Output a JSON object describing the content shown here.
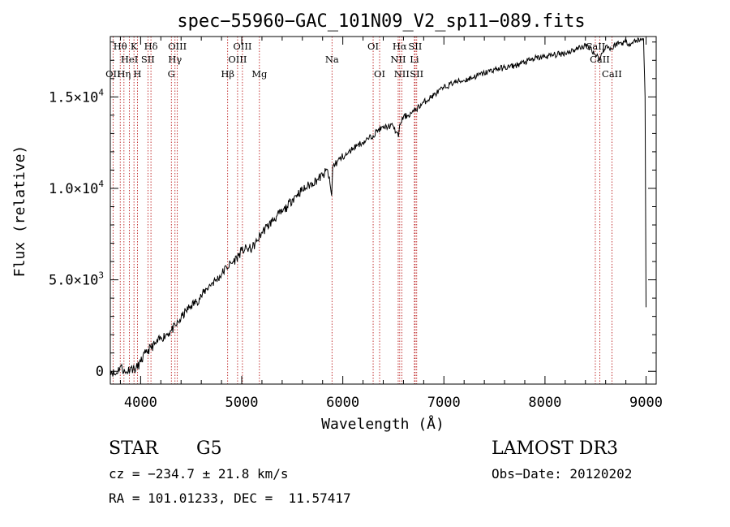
{
  "chart_data": {
    "type": "line",
    "title": "spec−55960−GAC_101N09_V2_sp11−089.fits",
    "xlabel": "Wavelength (Å)",
    "ylabel": "Flux (relative)",
    "xlim": [
      3700,
      9100
    ],
    "ylim": [
      -700,
      18300
    ],
    "x_ticks": [
      {
        "value": 4000,
        "label": "4000"
      },
      {
        "value": 5000,
        "label": "5000"
      },
      {
        "value": 6000,
        "label": "6000"
      },
      {
        "value": 7000,
        "label": "7000"
      },
      {
        "value": 8000,
        "label": "8000"
      },
      {
        "value": 9000,
        "label": "9000"
      }
    ],
    "y_ticks": [
      {
        "value": 0,
        "base": "0",
        "exp": ""
      },
      {
        "value": 5000,
        "base": "5.0×10",
        "exp": "3"
      },
      {
        "value": 10000,
        "base": "1.0×10",
        "exp": "4"
      },
      {
        "value": 15000,
        "base": "1.5×10",
        "exp": "4"
      }
    ],
    "series": [
      {
        "name": "spectrum",
        "x": [
          3700,
          3750,
          3800,
          3850,
          3900,
          3950,
          4000,
          4050,
          4100,
          4150,
          4200,
          4250,
          4300,
          4350,
          4400,
          4450,
          4500,
          4550,
          4600,
          4650,
          4700,
          4750,
          4800,
          4850,
          4900,
          4950,
          5000,
          5050,
          5100,
          5150,
          5200,
          5250,
          5300,
          5350,
          5400,
          5450,
          5500,
          5550,
          5600,
          5650,
          5700,
          5750,
          5800,
          5850,
          5890,
          5900,
          5950,
          6000,
          6050,
          6100,
          6150,
          6200,
          6250,
          6300,
          6350,
          6400,
          6450,
          6500,
          6550,
          6563,
          6600,
          6650,
          6700,
          6800,
          6900,
          7000,
          7100,
          7200,
          7300,
          7400,
          7500,
          7600,
          7700,
          7800,
          7900,
          8000,
          8100,
          8200,
          8300,
          8400,
          8450,
          8498,
          8542,
          8600,
          8662,
          8700,
          8800,
          8850,
          8900,
          8950,
          8975,
          8990,
          9000
        ],
        "y": [
          100,
          -200,
          300,
          -100,
          200,
          100,
          500,
          1000,
          1300,
          1500,
          1800,
          2000,
          2200,
          2500,
          2900,
          3300,
          3600,
          3800,
          4100,
          4500,
          4800,
          5000,
          5300,
          5700,
          5900,
          6200,
          6600,
          6700,
          6700,
          7100,
          7600,
          7900,
          8200,
          8500,
          8700,
          9000,
          9400,
          9700,
          9900,
          10100,
          10300,
          10500,
          10700,
          11000,
          9600,
          11200,
          11500,
          11700,
          11900,
          12200,
          12400,
          12500,
          12700,
          12900,
          13200,
          13300,
          13400,
          13400,
          12800,
          13500,
          13900,
          14000,
          14200,
          14700,
          15100,
          15500,
          15800,
          15900,
          16100,
          16300,
          16500,
          16600,
          16700,
          16900,
          17100,
          17200,
          17300,
          17400,
          17600,
          17800,
          17700,
          17300,
          17100,
          17800,
          17600,
          17900,
          18000,
          17900,
          18100,
          18100,
          18200,
          15000,
          3500
        ]
      }
    ],
    "spectral_lines": [
      {
        "label": "OΙΙ",
        "w": 3727,
        "row": 3
      },
      {
        "label": "Hθ",
        "w": 3798,
        "row": 1
      },
      {
        "label": "Hη",
        "w": 3835,
        "row": 3
      },
      {
        "label": "K",
        "w": 3934,
        "row": 1
      },
      {
        "label": "HeΙ",
        "w": 3889,
        "row": 2
      },
      {
        "label": "H",
        "w": 3968,
        "row": 3
      },
      {
        "label": "SΙΙ",
        "w": 4072,
        "row": 2
      },
      {
        "label": "Hδ",
        "w": 4102,
        "row": 1
      },
      {
        "label": "G",
        "w": 4304,
        "row": 3
      },
      {
        "label": "Hγ",
        "w": 4340,
        "row": 2
      },
      {
        "label": "OΙΙΙ",
        "w": 4363,
        "row": 1
      },
      {
        "label": "Hβ",
        "w": 4861,
        "row": 3
      },
      {
        "label": "OΙΙΙ",
        "w": 4959,
        "row": 2
      },
      {
        "label": "OΙΙΙ",
        "w": 5007,
        "row": 1
      },
      {
        "label": "Mg",
        "w": 5175,
        "row": 3
      },
      {
        "label": "Na",
        "w": 5893,
        "row": 2
      },
      {
        "label": "OΙ",
        "w": 6300,
        "row": 1
      },
      {
        "label": "OΙ",
        "w": 6364,
        "row": 3
      },
      {
        "label": "NΙΙ",
        "w": 6548,
        "row": 2
      },
      {
        "label": "Hα",
        "w": 6563,
        "row": 1
      },
      {
        "label": "NΙΙ",
        "w": 6583,
        "row": 3
      },
      {
        "label": "Li",
        "w": 6708,
        "row": 2
      },
      {
        "label": "SΙΙ",
        "w": 6716,
        "row": 1
      },
      {
        "label": "SΙΙ",
        "w": 6731,
        "row": 3
      },
      {
        "label": "CaΙΙ",
        "w": 8498,
        "row": 1
      },
      {
        "label": "CaΙΙ",
        "w": 8542,
        "row": 2
      },
      {
        "label": "CaΙΙ",
        "w": 8662,
        "row": 3
      }
    ],
    "colors": {
      "line": "#000000",
      "marker": "#b30000"
    }
  },
  "info": {
    "class": "STAR",
    "subclass": "G5",
    "survey": "LAMOST DR3",
    "cz": "cz = −234.7 ± 21.8 km/s",
    "obs_date": "Obs−Date: 20120202",
    "radec": "RA = 101.01233, DEC =  11.57417"
  }
}
